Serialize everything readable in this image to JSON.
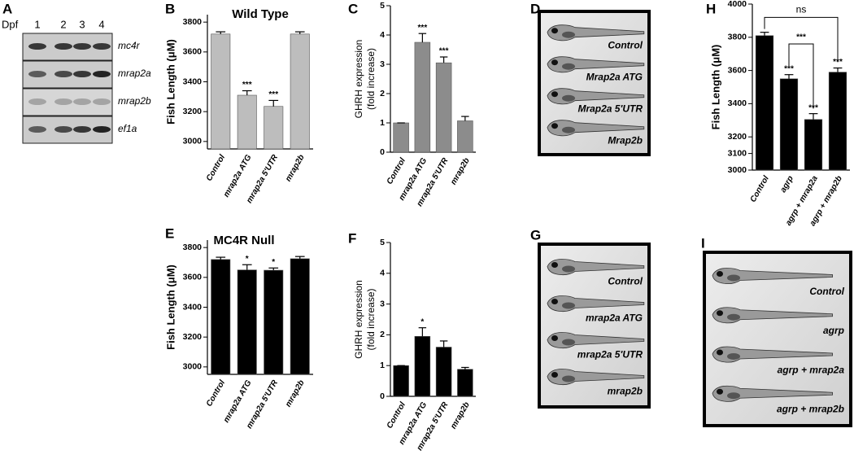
{
  "chart_data": [
    {
      "type": "bar",
      "panel": "B",
      "title": "Wild Type",
      "ylabel": "Fish Length (μM)",
      "categories": [
        "Control",
        "mrap2a ATG",
        "mrap2a 5'UTR",
        "mrap2b"
      ],
      "values": [
        3720,
        3310,
        3235,
        3720
      ],
      "errors": [
        15,
        30,
        40,
        15
      ],
      "significance": [
        null,
        "***",
        "***",
        null
      ],
      "color": "#bdbdbd",
      "ylim": [
        2950,
        3850
      ],
      "yticks": [
        3000,
        3200,
        3400,
        3600,
        3800
      ]
    },
    {
      "type": "bar",
      "panel": "C",
      "ylabel": [
        "GHRH expression",
        "(fold increase)"
      ],
      "categories": [
        "Control",
        "mrap2a ATG",
        "mrap2a 5'UTR",
        "mrap2b"
      ],
      "values": [
        1,
        3.75,
        3.05,
        1.07
      ],
      "errors": [
        0,
        0.3,
        0.2,
        0.15
      ],
      "significance": [
        null,
        "***",
        "***",
        null
      ],
      "color": "#8c8c8c",
      "ylim": [
        0,
        5
      ],
      "yticks": [
        0,
        1,
        2,
        3,
        4,
        5
      ]
    },
    {
      "type": "bar",
      "panel": "E",
      "title": "MC4R Null",
      "ylabel": "Fish Length (μM)",
      "categories": [
        "Control",
        "mrap2a ATG",
        "mrap2a 5'UTR",
        "mrap2b"
      ],
      "values": [
        3720,
        3650,
        3648,
        3725
      ],
      "errors": [
        15,
        35,
        15,
        15
      ],
      "significance": [
        null,
        "*",
        "*",
        null
      ],
      "color": "#000000",
      "ylim": [
        2950,
        3850
      ],
      "yticks": [
        3000,
        3200,
        3400,
        3600,
        3800
      ]
    },
    {
      "type": "bar",
      "panel": "F",
      "ylabel": [
        "GHRH expression",
        "(fold increase)"
      ],
      "categories": [
        "Control",
        "mrap2a ATG",
        "mrap2a 5'UTR",
        "mrap2b"
      ],
      "values": [
        1,
        1.95,
        1.6,
        0.88
      ],
      "errors": [
        0,
        0.28,
        0.2,
        0.06
      ],
      "significance": [
        null,
        "*",
        null,
        null
      ],
      "color": "#000000",
      "ylim": [
        0,
        5
      ],
      "yticks": [
        0,
        1,
        2,
        3,
        4,
        5
      ]
    },
    {
      "type": "bar",
      "panel": "H",
      "ylabel": "Fish Length (μM)",
      "categories": [
        "Control",
        "agrp",
        "agrp + mrap2a",
        "agrp + mrap2b"
      ],
      "values": [
        3810,
        3550,
        3305,
        3590
      ],
      "errors": [
        20,
        25,
        35,
        25
      ],
      "significance": [
        null,
        "***",
        "***",
        "***"
      ],
      "bracket_labels": [
        "***",
        "ns"
      ],
      "color": "#000000",
      "ylim": [
        3000,
        4000
      ],
      "yticks": [
        3000,
        3100,
        3200,
        3400,
        3600,
        3800,
        4000
      ]
    }
  ],
  "panel_a": {
    "panel": "A",
    "axis_label": "Dpf",
    "lanes": [
      "1",
      "2",
      "3",
      "4"
    ],
    "genes": [
      "mc4r",
      "mrap2a",
      "mrap2b",
      "ef1a"
    ]
  },
  "image_panels": [
    {
      "panel": "D",
      "labels": [
        "Control",
        "Mrap2a ATG",
        "Mrap2a 5'UTR",
        "Mrap2b"
      ]
    },
    {
      "panel": "G",
      "labels": [
        "Control",
        "mrap2a ATG",
        "mrap2a 5'UTR",
        "mrap2b"
      ]
    },
    {
      "panel": "I",
      "labels": [
        "Control",
        "agrp",
        "agrp + mrap2a",
        "agrp + mrap2b"
      ]
    }
  ]
}
